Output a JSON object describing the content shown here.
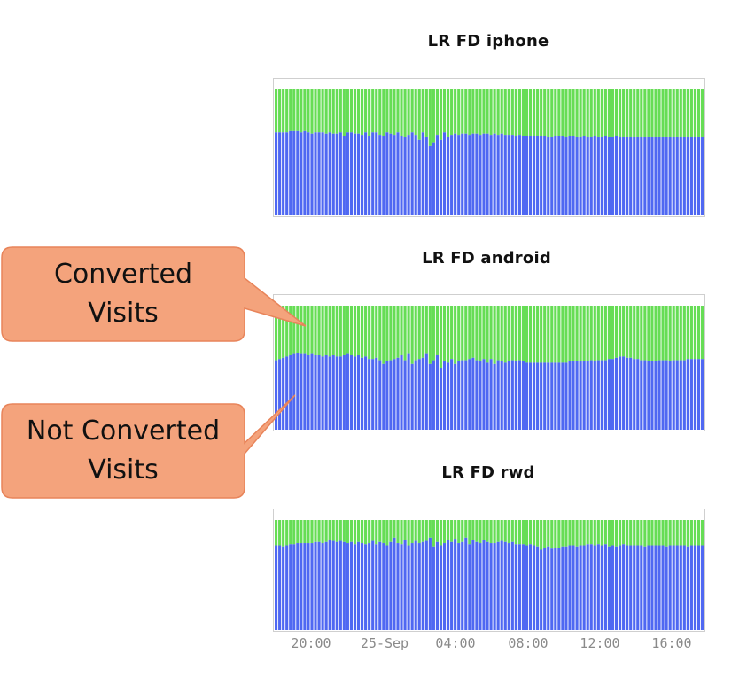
{
  "callouts": [
    {
      "lines": [
        "Converted",
        "Visits"
      ]
    },
    {
      "lines": [
        "Not Converted",
        "Visits"
      ]
    }
  ],
  "colors": {
    "converted": "#66dd55",
    "not_converted": "#4f68f2",
    "callout_fill": "#f4a37c",
    "callout_stroke": "#e8845a",
    "frame": "#cfcfcf",
    "tick_text": "#8a8a8a"
  },
  "chart_data": [
    {
      "type": "bar",
      "stacked": true,
      "normalized": true,
      "title": "LR FD iphone",
      "ylim": [
        0,
        1
      ],
      "grid": false,
      "series": [
        {
          "key": "not_converted",
          "values": [
            0.66,
            0.66,
            0.66,
            0.66,
            0.67,
            0.67,
            0.67,
            0.66,
            0.67,
            0.66,
            0.65,
            0.66,
            0.66,
            0.66,
            0.65,
            0.66,
            0.65,
            0.65,
            0.66,
            0.63,
            0.66,
            0.66,
            0.65,
            0.65,
            0.64,
            0.66,
            0.63,
            0.66,
            0.66,
            0.64,
            0.63,
            0.66,
            0.65,
            0.64,
            0.66,
            0.63,
            0.62,
            0.64,
            0.66,
            0.64,
            0.6,
            0.66,
            0.62,
            0.55,
            0.58,
            0.64,
            0.6,
            0.66,
            0.62,
            0.64,
            0.65,
            0.64,
            0.65,
            0.65,
            0.64,
            0.65,
            0.65,
            0.64,
            0.65,
            0.65,
            0.64,
            0.65,
            0.64,
            0.65,
            0.64,
            0.64,
            0.64,
            0.63,
            0.64,
            0.63,
            0.63,
            0.63,
            0.63,
            0.63,
            0.63,
            0.63,
            0.62,
            0.62,
            0.63,
            0.63,
            0.63,
            0.62,
            0.63,
            0.63,
            0.62,
            0.62,
            0.63,
            0.62,
            0.62,
            0.63,
            0.62,
            0.62,
            0.63,
            0.62,
            0.62,
            0.63,
            0.62,
            0.62,
            0.62,
            0.62,
            0.62,
            0.62,
            0.62,
            0.62,
            0.62,
            0.62,
            0.62,
            0.62,
            0.62,
            0.62,
            0.62,
            0.62,
            0.62,
            0.62,
            0.62,
            0.62,
            0.62,
            0.62,
            0.62,
            0.62
          ]
        },
        {
          "key": "converted"
        }
      ]
    },
    {
      "type": "bar",
      "stacked": true,
      "normalized": true,
      "title": "LR FD android",
      "ylim": [
        0,
        1
      ],
      "grid": false,
      "series": [
        {
          "key": "not_converted",
          "values": [
            0.56,
            0.57,
            0.58,
            0.59,
            0.6,
            0.61,
            0.62,
            0.61,
            0.61,
            0.6,
            0.61,
            0.6,
            0.6,
            0.59,
            0.6,
            0.59,
            0.6,
            0.59,
            0.59,
            0.6,
            0.61,
            0.6,
            0.59,
            0.6,
            0.58,
            0.59,
            0.57,
            0.57,
            0.58,
            0.56,
            0.53,
            0.55,
            0.56,
            0.57,
            0.58,
            0.6,
            0.56,
            0.61,
            0.53,
            0.56,
            0.57,
            0.58,
            0.61,
            0.53,
            0.56,
            0.6,
            0.5,
            0.55,
            0.54,
            0.57,
            0.53,
            0.55,
            0.56,
            0.56,
            0.57,
            0.58,
            0.56,
            0.55,
            0.57,
            0.54,
            0.57,
            0.53,
            0.56,
            0.55,
            0.54,
            0.55,
            0.56,
            0.55,
            0.56,
            0.55,
            0.54,
            0.54,
            0.54,
            0.54,
            0.54,
            0.54,
            0.54,
            0.54,
            0.54,
            0.54,
            0.54,
            0.54,
            0.55,
            0.55,
            0.55,
            0.55,
            0.55,
            0.55,
            0.56,
            0.55,
            0.56,
            0.56,
            0.56,
            0.57,
            0.57,
            0.58,
            0.59,
            0.59,
            0.58,
            0.58,
            0.57,
            0.57,
            0.56,
            0.56,
            0.55,
            0.55,
            0.55,
            0.56,
            0.56,
            0.56,
            0.55,
            0.56,
            0.56,
            0.56,
            0.56,
            0.57,
            0.57,
            0.57,
            0.57,
            0.57
          ]
        },
        {
          "key": "converted"
        }
      ]
    },
    {
      "type": "bar",
      "stacked": true,
      "normalized": true,
      "title": "LR FD rwd",
      "ylim": [
        0,
        1
      ],
      "grid": false,
      "series": [
        {
          "key": "not_converted",
          "values": [
            0.77,
            0.77,
            0.76,
            0.77,
            0.78,
            0.78,
            0.79,
            0.79,
            0.79,
            0.79,
            0.79,
            0.8,
            0.8,
            0.79,
            0.8,
            0.82,
            0.81,
            0.8,
            0.81,
            0.8,
            0.79,
            0.8,
            0.78,
            0.8,
            0.79,
            0.78,
            0.79,
            0.81,
            0.78,
            0.8,
            0.79,
            0.77,
            0.8,
            0.84,
            0.79,
            0.78,
            0.82,
            0.77,
            0.79,
            0.81,
            0.79,
            0.8,
            0.81,
            0.84,
            0.76,
            0.8,
            0.77,
            0.79,
            0.82,
            0.8,
            0.83,
            0.79,
            0.8,
            0.84,
            0.78,
            0.82,
            0.8,
            0.79,
            0.82,
            0.8,
            0.79,
            0.79,
            0.8,
            0.81,
            0.8,
            0.79,
            0.8,
            0.78,
            0.78,
            0.78,
            0.77,
            0.78,
            0.77,
            0.76,
            0.73,
            0.75,
            0.76,
            0.74,
            0.75,
            0.75,
            0.76,
            0.76,
            0.77,
            0.77,
            0.76,
            0.77,
            0.77,
            0.78,
            0.78,
            0.77,
            0.78,
            0.77,
            0.78,
            0.76,
            0.77,
            0.76,
            0.77,
            0.78,
            0.77,
            0.77,
            0.77,
            0.77,
            0.77,
            0.76,
            0.77,
            0.77,
            0.77,
            0.77,
            0.77,
            0.76,
            0.77,
            0.77,
            0.77,
            0.77,
            0.77,
            0.76,
            0.77,
            0.77,
            0.77,
            0.77
          ]
        },
        {
          "key": "converted"
        }
      ],
      "x_ticks": [
        "20:00",
        "25-Sep",
        "04:00",
        "08:00",
        "12:00",
        "16:00"
      ]
    }
  ]
}
